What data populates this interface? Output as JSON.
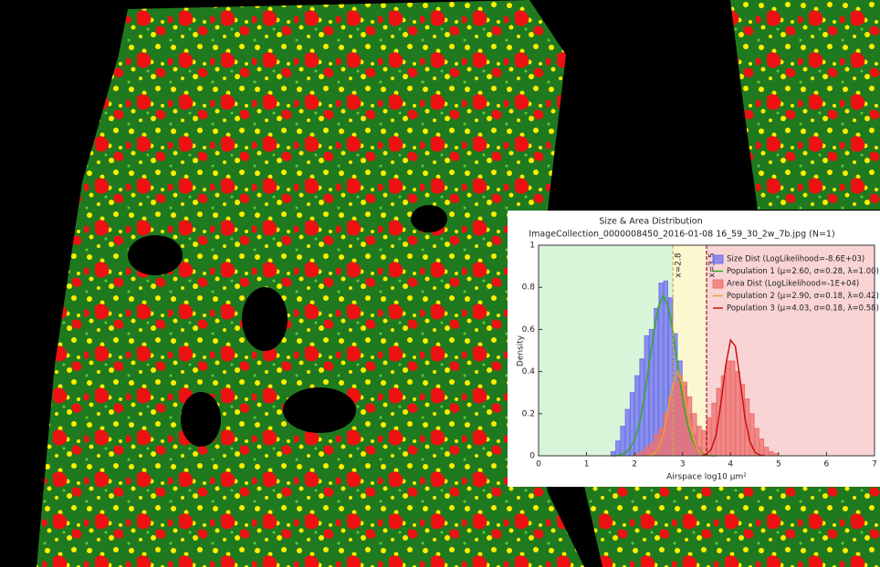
{
  "chart_data": {
    "type": "histogram",
    "title": "Size & Area Distribution",
    "subtitle": "ImageCollection_0000008450_2016-01-08 16_59_30_2w_7b.jpg (N=1)",
    "x_label": "Airspace log10 µm²",
    "y_label": "Density",
    "xlim": [
      0,
      7
    ],
    "ylim": [
      0,
      1
    ],
    "xticks": [
      0,
      1,
      2,
      3,
      4,
      5,
      6,
      7
    ],
    "yticks": [
      0,
      0.2,
      0.4,
      0.6,
      0.8,
      1
    ],
    "regions": [
      {
        "color": "#d9f5d9"
      },
      {
        "color": "#fbf8d0"
      },
      {
        "color": "#f9d4d4"
      }
    ],
    "vlines": [
      {
        "value": 2.8,
        "label": "x=2.8",
        "color": "#c8b050"
      },
      {
        "value": 3.5,
        "label": "x=3.5",
        "color": "#a0102a"
      }
    ],
    "histograms": [
      {
        "name": "Size Dist (LogLikelihood=-8.6E+03)",
        "color": "#7070ee",
        "bins": [
          1.5,
          1.6,
          1.7,
          1.8,
          1.9,
          2.0,
          2.1,
          2.2,
          2.3,
          2.4,
          2.5,
          2.6,
          2.7,
          2.8,
          2.9,
          3.0,
          3.1,
          3.2,
          3.3,
          3.4
        ],
        "values": [
          0.02,
          0.07,
          0.14,
          0.22,
          0.3,
          0.38,
          0.46,
          0.57,
          0.6,
          0.7,
          0.82,
          0.83,
          0.75,
          0.58,
          0.45,
          0.33,
          0.2,
          0.1,
          0.04
        ]
      },
      {
        "name": "Area Dist (LogLikelihood=-1E+04)",
        "color": "#ee7070",
        "bins": [
          2.0,
          2.1,
          2.2,
          2.3,
          2.4,
          2.5,
          2.6,
          2.7,
          2.8,
          2.9,
          3.0,
          3.1,
          3.2,
          3.3,
          3.4,
          3.5,
          3.6,
          3.7,
          3.8,
          3.9,
          4.0,
          4.1,
          4.2,
          4.3,
          4.4,
          4.5,
          4.6,
          4.7,
          4.8,
          4.9,
          5.0
        ],
        "values": [
          0.01,
          0.02,
          0.04,
          0.06,
          0.1,
          0.13,
          0.2,
          0.28,
          0.35,
          0.38,
          0.35,
          0.28,
          0.2,
          0.14,
          0.12,
          0.18,
          0.25,
          0.32,
          0.38,
          0.45,
          0.45,
          0.4,
          0.34,
          0.27,
          0.2,
          0.13,
          0.08,
          0.04,
          0.02,
          0.01
        ]
      }
    ],
    "series": [
      {
        "name": "Population 1 (μ=2.60, σ=0.28, λ=1.00)",
        "color": "#33aa22",
        "x": [
          1.5,
          1.6,
          1.7,
          1.8,
          1.9,
          2.0,
          2.1,
          2.2,
          2.3,
          2.4,
          2.5,
          2.6,
          2.7,
          2.8,
          2.9,
          3.0,
          3.1,
          3.2,
          3.3,
          3.4,
          3.5,
          3.6,
          3.7
        ],
        "values": [
          0,
          0,
          0.004,
          0.013,
          0.033,
          0.076,
          0.15,
          0.27,
          0.43,
          0.59,
          0.71,
          0.76,
          0.71,
          0.59,
          0.43,
          0.27,
          0.15,
          0.076,
          0.033,
          0.013,
          0.004,
          0,
          0
        ]
      },
      {
        "name": "Population 2 (μ=2.90, σ=0.18, λ=0.42)",
        "color": "#e8a030",
        "x": [
          2.3,
          2.4,
          2.5,
          2.6,
          2.7,
          2.8,
          2.9,
          3.0,
          3.1,
          3.2,
          3.3,
          3.4,
          3.5
        ],
        "values": [
          0.002,
          0.008,
          0.034,
          0.1,
          0.22,
          0.34,
          0.4,
          0.34,
          0.22,
          0.1,
          0.034,
          0.008,
          0.002
        ]
      },
      {
        "name": "Population 3 (μ=4.03, σ=0.18, λ=0.58)",
        "color": "#cc1111",
        "x": [
          3.4,
          3.5,
          3.6,
          3.7,
          3.8,
          3.9,
          4.0,
          4.1,
          4.2,
          4.3,
          4.4,
          4.5,
          4.6,
          4.7
        ],
        "values": [
          0.001,
          0.007,
          0.032,
          0.1,
          0.25,
          0.43,
          0.55,
          0.52,
          0.36,
          0.18,
          0.07,
          0.019,
          0.004,
          0.001
        ]
      }
    ],
    "legend_order": [
      "histograms.0",
      "series.0",
      "histograms.1",
      "series.1",
      "series.2"
    ]
  }
}
